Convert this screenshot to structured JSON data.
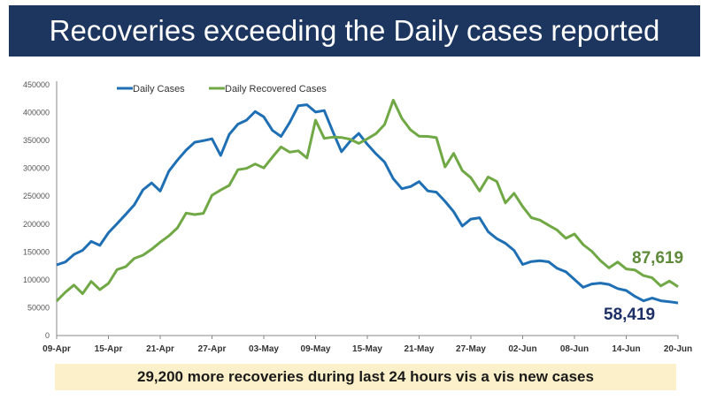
{
  "title": "Recoveries exceeding the Daily cases reported",
  "footer": "29,200 more recoveries during last 24 hours vis a vis new cases",
  "chart_data": {
    "type": "line",
    "x_start": "09-Apr",
    "x_end": "20-Jun",
    "x_ticks": [
      "09-Apr",
      "15-Apr",
      "21-Apr",
      "27-Apr",
      "03-May",
      "09-May",
      "15-May",
      "21-May",
      "27-May",
      "02-Jun",
      "08-Jun",
      "14-Jun",
      "20-Jun"
    ],
    "y_ticks": [
      "0",
      "50000",
      "100000",
      "150000",
      "200000",
      "250000",
      "300000",
      "350000",
      "400000",
      "450000"
    ],
    "ylim": [
      0,
      450000
    ],
    "grid": false,
    "legend": "top",
    "series": [
      {
        "name": "Daily Cases",
        "color": "#1f6fb5",
        "values": [
          126789,
          131968,
          145384,
          152879,
          168912,
          161736,
          184372,
          200739,
          217353,
          234692,
          261500,
          273810,
          259170,
          295041,
          314835,
          332730,
          346786,
          349691,
          352991,
          323144,
          360960,
          379257,
          386452,
          401993,
          392488,
          368147,
          357229,
          382315,
          412262,
          414188,
          401078,
          403738,
          366161,
          329942,
          348421,
          362727,
          343144,
          326098,
          311170,
          281386,
          263533,
          267334,
          276110,
          259551,
          257299,
          240842,
          222315,
          196427,
          208921,
          211298,
          186364,
          173790,
          165553,
          152734,
          127510,
          132788,
          134154,
          132364,
          120529,
          114460,
          100636,
          86498,
          92596,
          94052,
          91702,
          84332,
          80834,
          70421,
          62224,
          67208,
          62480,
          60753,
          58419
        ],
        "end_label": "58,419",
        "end_label_color": "#1c2f66"
      },
      {
        "name": "Daily Recovered Cases",
        "color": "#70a845",
        "values": [
          61899,
          77567,
          90584,
          75086,
          97168,
          82339,
          93528,
          118302,
          123354,
          138423,
          144178,
          154761,
          167457,
          178841,
          193279,
          219838,
          217113,
          219272,
          251827,
          261162,
          269507,
          297540,
          299988,
          307865,
          300732,
          320289,
          338439,
          329113,
          331507,
          318609,
          386444,
          353818,
          356082,
          355338,
          352181,
          344776,
          352959,
          362437,
          378741,
          422436,
          389851,
          369077,
          357630,
          357295,
          355102,
          302544,
          326850,
          295955,
          283135,
          259459,
          284601,
          276309,
          238022,
          255287,
          231456,
          211499,
          207071,
          197894,
          189232,
          174399,
          182282,
          163232,
          151367,
          134580,
          121311,
          132062,
          119501,
          117525,
          107628,
          103570,
          88977,
          97743,
          87619
        ],
        "end_label": "87,619",
        "end_label_color": "#5e8a3a"
      }
    ]
  }
}
